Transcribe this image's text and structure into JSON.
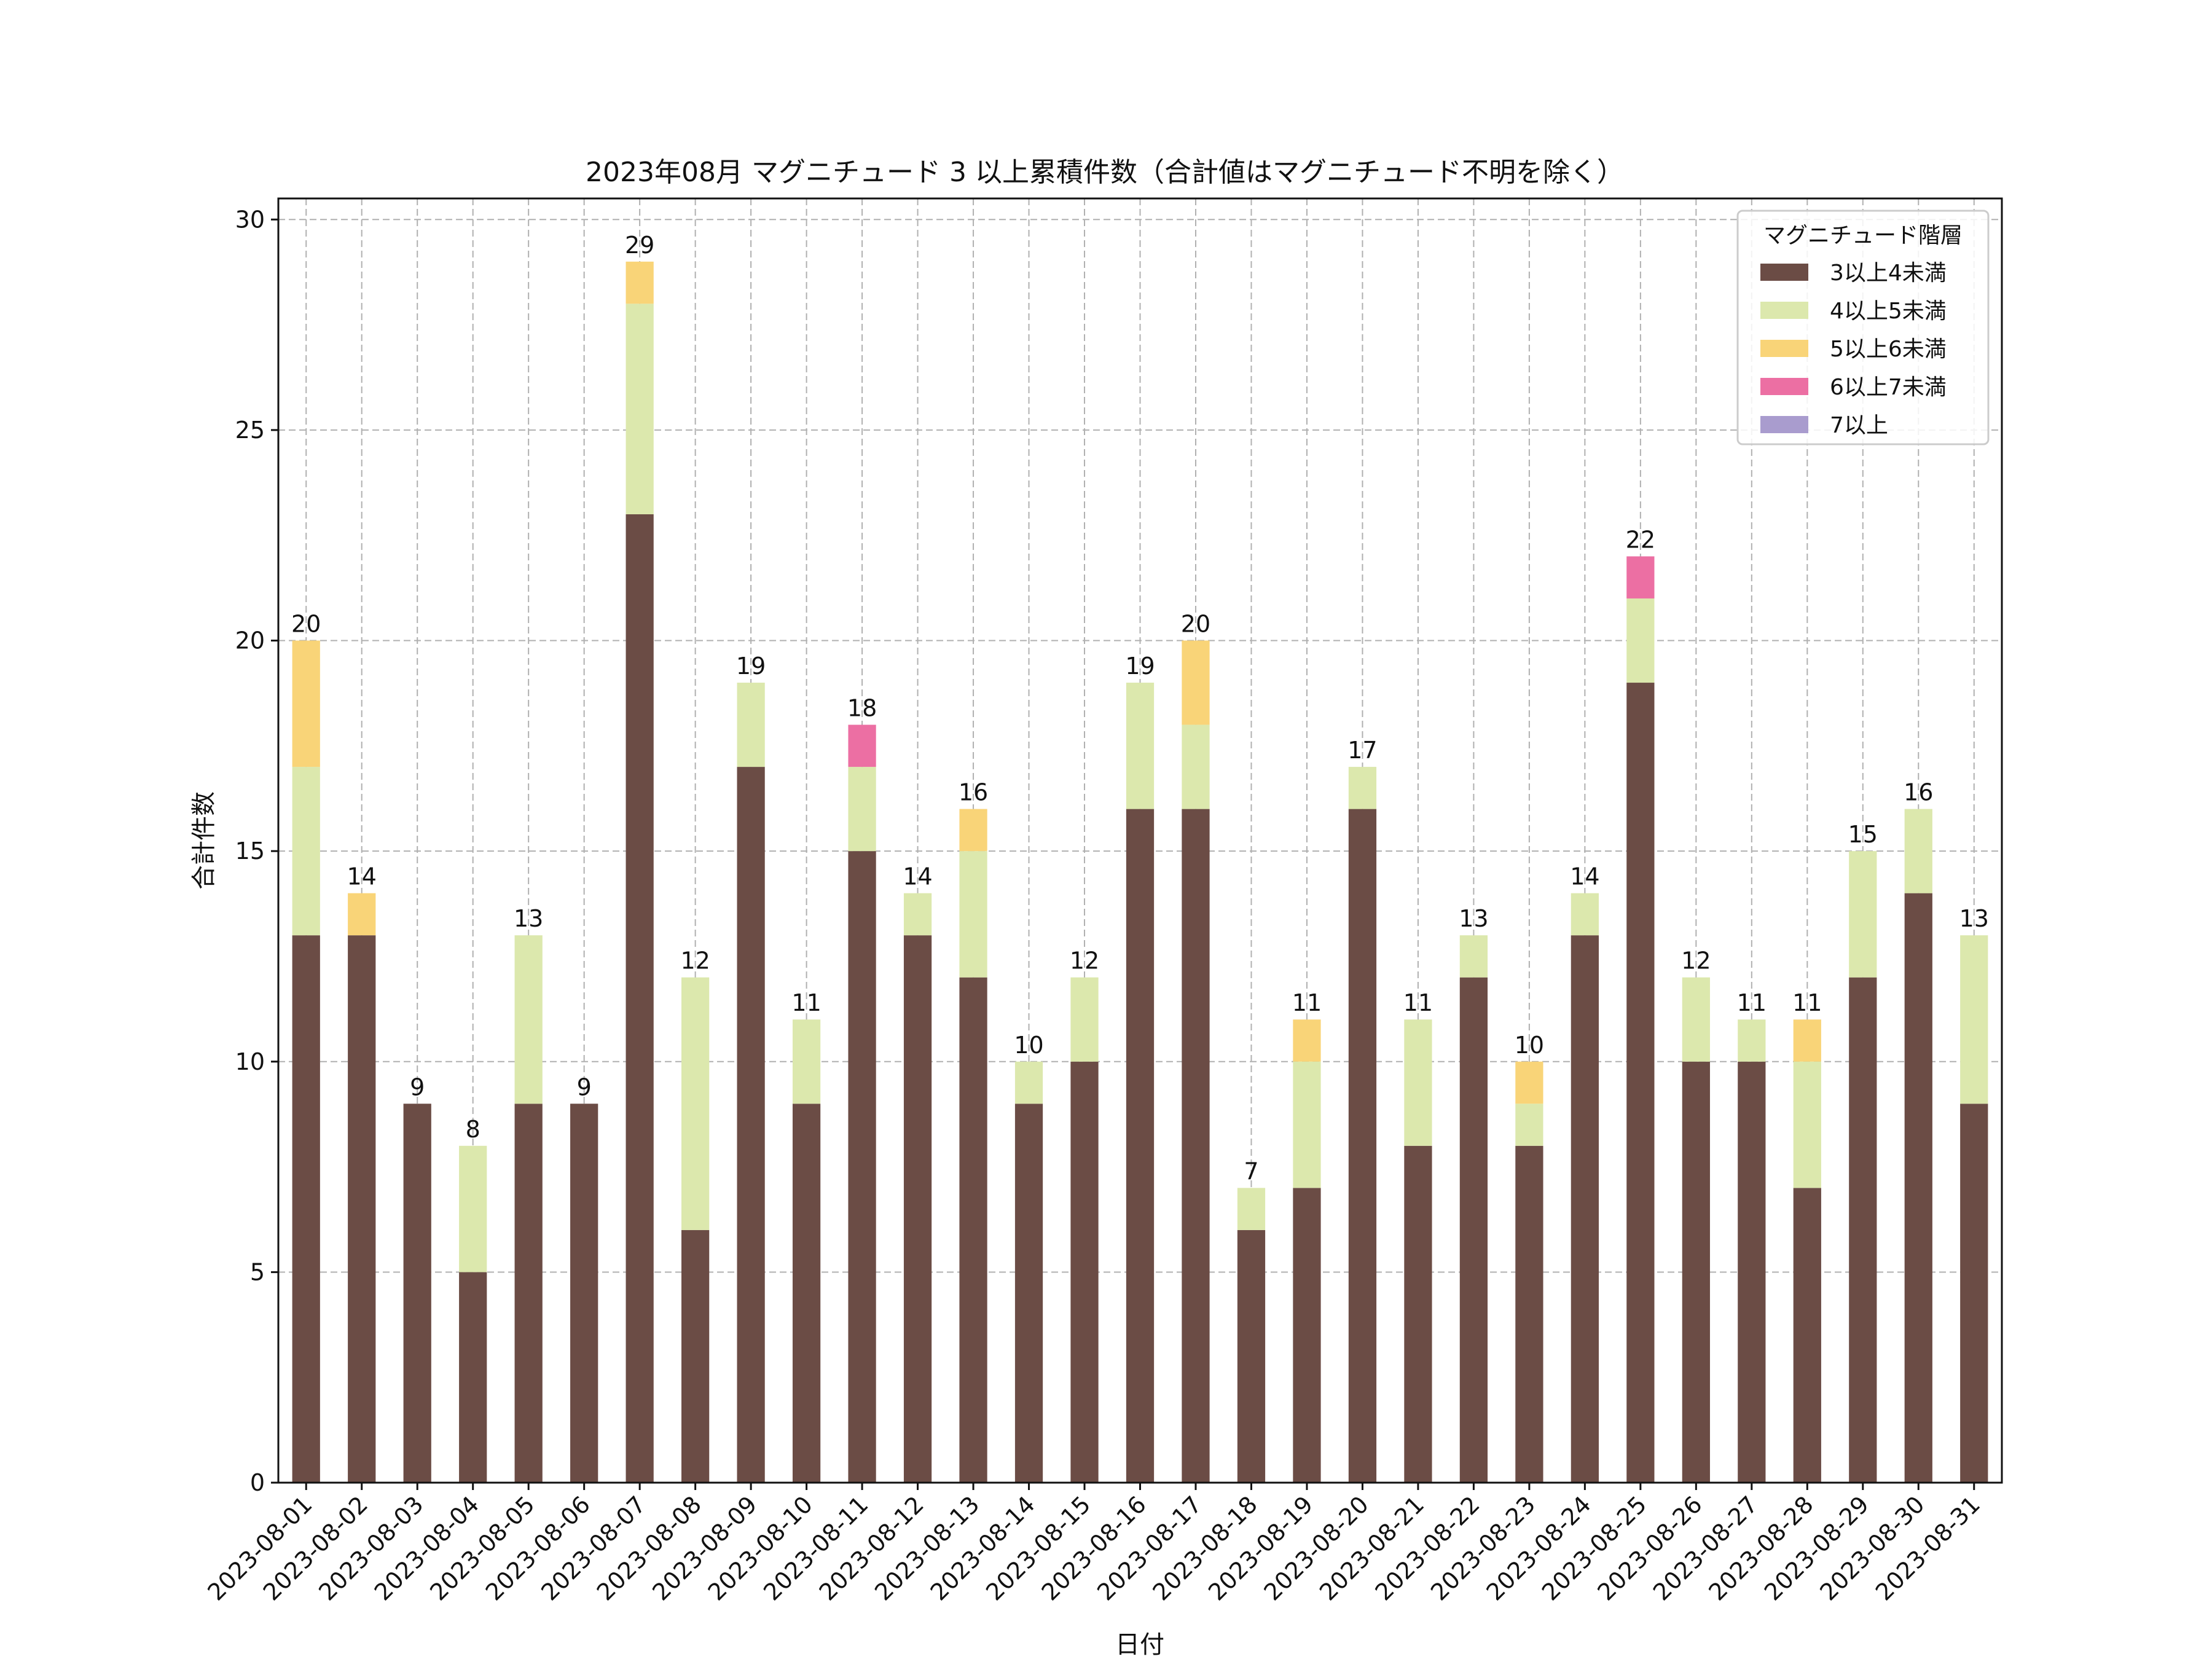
{
  "chart_data": {
    "type": "bar",
    "stacked": true,
    "title": "2023年08月 マグニチュード 3 以上累積件数（合計値はマグニチュード不明を除く）",
    "xlabel": "日付",
    "ylabel": "合計件数",
    "ylim": [
      0,
      30.5
    ],
    "yticks": [
      0,
      5,
      10,
      15,
      20,
      25,
      30
    ],
    "grid": true,
    "legend_title": "マグニチュード階層",
    "legend_position": "top-right",
    "categories": [
      "2023-08-01",
      "2023-08-02",
      "2023-08-03",
      "2023-08-04",
      "2023-08-05",
      "2023-08-06",
      "2023-08-07",
      "2023-08-08",
      "2023-08-09",
      "2023-08-10",
      "2023-08-11",
      "2023-08-12",
      "2023-08-13",
      "2023-08-14",
      "2023-08-15",
      "2023-08-16",
      "2023-08-17",
      "2023-08-18",
      "2023-08-19",
      "2023-08-20",
      "2023-08-21",
      "2023-08-22",
      "2023-08-23",
      "2023-08-24",
      "2023-08-25",
      "2023-08-26",
      "2023-08-27",
      "2023-08-28",
      "2023-08-29",
      "2023-08-30",
      "2023-08-31"
    ],
    "series": [
      {
        "name": "3以上4未満",
        "color": "#6b4c45",
        "values": [
          13,
          13,
          9,
          5,
          9,
          9,
          23,
          6,
          17,
          9,
          15,
          13,
          12,
          9,
          10,
          16,
          16,
          6,
          7,
          16,
          8,
          12,
          8,
          13,
          19,
          10,
          10,
          7,
          12,
          14,
          9
        ]
      },
      {
        "name": "4以上5未満",
        "color": "#dce8ad",
        "values": [
          4,
          0,
          0,
          3,
          4,
          0,
          5,
          6,
          2,
          2,
          2,
          1,
          3,
          1,
          2,
          3,
          2,
          1,
          3,
          1,
          3,
          1,
          1,
          1,
          2,
          2,
          1,
          3,
          3,
          2,
          4
        ]
      },
      {
        "name": "5以上6未満",
        "color": "#f9d478",
        "values": [
          3,
          1,
          0,
          0,
          0,
          0,
          1,
          0,
          0,
          0,
          0,
          0,
          1,
          0,
          0,
          0,
          2,
          0,
          1,
          0,
          0,
          0,
          1,
          0,
          0,
          0,
          0,
          1,
          0,
          0,
          0
        ]
      },
      {
        "name": "6以上7未満",
        "color": "#ec6fa3",
        "values": [
          0,
          0,
          0,
          0,
          0,
          0,
          0,
          0,
          0,
          0,
          1,
          0,
          0,
          0,
          0,
          0,
          0,
          0,
          0,
          0,
          0,
          0,
          0,
          0,
          1,
          0,
          0,
          0,
          0,
          0,
          0
        ]
      },
      {
        "name": "7以上",
        "color": "#a99cce",
        "values": [
          0,
          0,
          0,
          0,
          0,
          0,
          0,
          0,
          0,
          0,
          0,
          0,
          0,
          0,
          0,
          0,
          0,
          0,
          0,
          0,
          0,
          0,
          0,
          0,
          0,
          0,
          0,
          0,
          0,
          0,
          0
        ]
      }
    ],
    "totals": [
      20,
      14,
      9,
      8,
      13,
      9,
      29,
      12,
      19,
      11,
      18,
      14,
      16,
      10,
      12,
      19,
      20,
      7,
      11,
      17,
      11,
      13,
      10,
      14,
      22,
      12,
      11,
      11,
      15,
      16,
      13
    ]
  }
}
